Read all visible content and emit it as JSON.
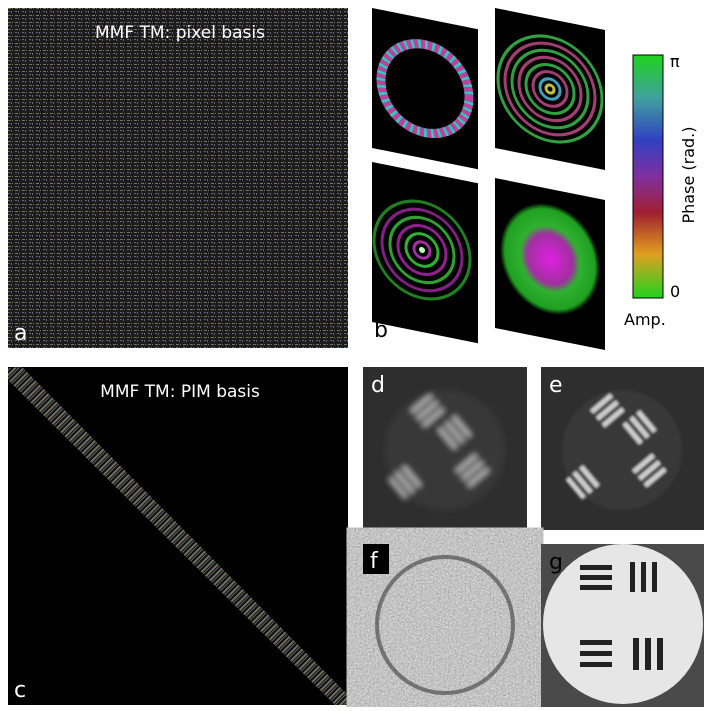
{
  "panels": {
    "a": {
      "label": "a",
      "title": "MMF TM: pixel basis"
    },
    "b": {
      "label": "b"
    },
    "c": {
      "label": "c",
      "title": "MMF TM: PIM basis"
    },
    "d": {
      "label": "d"
    },
    "e": {
      "label": "e"
    },
    "f": {
      "label": "f"
    },
    "g": {
      "label": "g"
    }
  },
  "colorbar": {
    "top": "π",
    "bottom": "0",
    "axis_label": "Phase (rad.)",
    "amp_label": "Amp."
  }
}
